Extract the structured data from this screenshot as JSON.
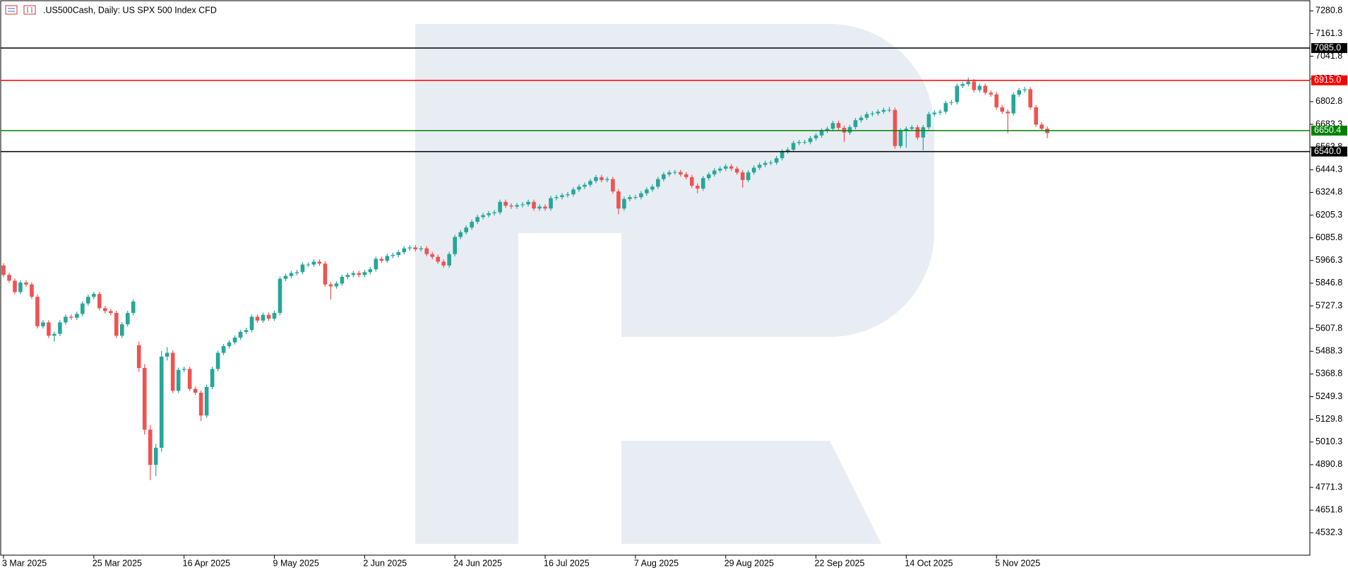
{
  "chart_data": {
    "type": "candlestick",
    "title": ".US500Cash, Daily:  US SPX 500 Index CFD",
    "categories": [
      "3 Mar 2025",
      null,
      null,
      null,
      null,
      null,
      null,
      null,
      null,
      null,
      null,
      null,
      null,
      null,
      null,
      null,
      "25 Mar 2025",
      null,
      null,
      null,
      null,
      null,
      null,
      null,
      null,
      null,
      null,
      null,
      null,
      null,
      null,
      null,
      "16 Apr 2025",
      null,
      null,
      null,
      null,
      null,
      null,
      null,
      null,
      null,
      null,
      null,
      null,
      null,
      null,
      null,
      "9 May 2025",
      null,
      null,
      null,
      null,
      null,
      null,
      null,
      null,
      null,
      null,
      null,
      null,
      null,
      null,
      null,
      "2 Jun 2025",
      null,
      null,
      null,
      null,
      null,
      null,
      null,
      null,
      null,
      null,
      null,
      null,
      null,
      null,
      null,
      "24 Jun 2025",
      null,
      null,
      null,
      null,
      null,
      null,
      null,
      null,
      null,
      null,
      null,
      null,
      null,
      null,
      null,
      "16 Jul 2025",
      null,
      null,
      null,
      null,
      null,
      null,
      null,
      null,
      null,
      null,
      null,
      null,
      null,
      null,
      null,
      "7 Aug 2025",
      null,
      null,
      null,
      null,
      null,
      null,
      null,
      null,
      null,
      null,
      null,
      null,
      null,
      null,
      null,
      "29 Aug 2025",
      null,
      null,
      null,
      null,
      null,
      null,
      null,
      null,
      null,
      null,
      null,
      null,
      null,
      null,
      null,
      "22 Sep 2025",
      null,
      null,
      null,
      null,
      null,
      null,
      null,
      null,
      null,
      null,
      null,
      null,
      null,
      null,
      null,
      "14 Oct 2025",
      null,
      null,
      null,
      null,
      null,
      null,
      null,
      null,
      null,
      null,
      null,
      null,
      null,
      null,
      null,
      "5 Nov 2025",
      null,
      null,
      null,
      null,
      null,
      null,
      null,
      null,
      null
    ],
    "open": [
      5940,
      5890,
      5860,
      5800,
      5850,
      5840,
      5775,
      5620,
      5640,
      5570,
      5580,
      5640,
      5670,
      5665,
      5685,
      5740,
      5775,
      5790,
      5715,
      5700,
      5690,
      5570,
      5630,
      5690,
      5520,
      5400,
      5075,
      4890,
      4980,
      5460,
      5480,
      5280,
      5390,
      5395,
      5290,
      5270,
      5150,
      5300,
      5395,
      5480,
      5515,
      5535,
      5560,
      5590,
      5600,
      5670,
      5650,
      5680,
      5660,
      5690,
      5870,
      5885,
      5900,
      5905,
      5945,
      5945,
      5960,
      5950,
      5840,
      5830,
      5845,
      5880,
      5890,
      5900,
      5890,
      5905,
      5920,
      5975,
      5965,
      5990,
      5995,
      6010,
      6030,
      6035,
      6025,
      6030,
      6000,
      5985,
      5960,
      5940,
      6000,
      6090,
      6115,
      6140,
      6170,
      6195,
      6205,
      6215,
      6220,
      6275,
      6255,
      6250,
      6258,
      6262,
      6275,
      6240,
      6250,
      6240,
      6295,
      6300,
      6310,
      6315,
      6340,
      6355,
      6365,
      6385,
      6405,
      6390,
      6395,
      6330,
      6240,
      6290,
      6300,
      6300,
      6320,
      6340,
      6355,
      6395,
      6420,
      6430,
      6432,
      6420,
      6405,
      6360,
      6345,
      6400,
      6420,
      6440,
      6450,
      6462,
      6450,
      6430,
      6390,
      6430,
      6455,
      6470,
      6480,
      6482,
      6505,
      6540,
      6550,
      6585,
      6590,
      6590,
      6610,
      6625,
      6650,
      6660,
      6690,
      6665,
      6640,
      6669,
      6705,
      6718,
      6737,
      6741,
      6750,
      6759,
      6759,
      6569,
      6650,
      6660,
      6668,
      6614,
      6668,
      6737,
      6745,
      6750,
      6796,
      6800,
      6886,
      6895,
      6909,
      6864,
      6886,
      6850,
      6841,
      6773,
      6750,
      6741,
      6840,
      6863,
      6868,
      6773,
      6682,
      6660
    ],
    "high": [
      5952,
      5902,
      5872,
      5862,
      5862,
      5852,
      5787,
      5652,
      5652,
      5592,
      5652,
      5682,
      5682,
      5697,
      5752,
      5787,
      5802,
      5802,
      5727,
      5712,
      5702,
      5642,
      5702,
      5762,
      5540,
      5420,
      5100,
      5000,
      5490,
      5510,
      5492,
      5402,
      5407,
      5407,
      5302,
      5282,
      5312,
      5407,
      5492,
      5527,
      5547,
      5572,
      5602,
      5612,
      5682,
      5682,
      5692,
      5692,
      5702,
      5882,
      5897,
      5912,
      5917,
      5957,
      5957,
      5972,
      5972,
      5962,
      5852,
      5857,
      5892,
      5902,
      5912,
      5912,
      5917,
      5932,
      5987,
      5987,
      6002,
      6007,
      6022,
      6042,
      6047,
      6047,
      6042,
      6042,
      6012,
      5997,
      5972,
      6012,
      6102,
      6127,
      6152,
      6182,
      6207,
      6217,
      6227,
      6232,
      6287,
      6287,
      6267,
      6270,
      6274,
      6287,
      6287,
      6262,
      6262,
      6307,
      6312,
      6322,
      6327,
      6352,
      6367,
      6377,
      6397,
      6417,
      6417,
      6407,
      6407,
      6342,
      6302,
      6312,
      6312,
      6332,
      6352,
      6367,
      6407,
      6432,
      6442,
      6444,
      6444,
      6432,
      6417,
      6372,
      6412,
      6432,
      6452,
      6462,
      6474,
      6474,
      6462,
      6442,
      6442,
      6467,
      6482,
      6492,
      6494,
      6517,
      6552,
      6562,
      6597,
      6602,
      6602,
      6622,
      6637,
      6662,
      6672,
      6702,
      6702,
      6677,
      6681,
      6717,
      6730,
      6749,
      6753,
      6762,
      6771,
      6775,
      6771,
      6662,
      6672,
      6680,
      6680,
      6680,
      6749,
      6757,
      6762,
      6808,
      6812,
      6898,
      6907,
      6930,
      6921,
      6898,
      6898,
      6862,
      6853,
      6785,
      6762,
      6852,
      6875,
      6880,
      6880,
      6785,
      6694,
      6672
    ],
    "low": [
      5878,
      5848,
      5788,
      5788,
      5828,
      5763,
      5608,
      5608,
      5558,
      5540,
      5568,
      5628,
      5653,
      5653,
      5673,
      5728,
      5763,
      5703,
      5688,
      5678,
      5558,
      5558,
      5618,
      5678,
      5380,
      5050,
      4810,
      4830,
      4960,
      5440,
      5268,
      5268,
      5378,
      5278,
      5258,
      5120,
      5138,
      5288,
      5383,
      5468,
      5503,
      5523,
      5548,
      5578,
      5588,
      5638,
      5638,
      5648,
      5648,
      5678,
      5858,
      5873,
      5888,
      5893,
      5933,
      5933,
      5938,
      5828,
      5760,
      5818,
      5833,
      5868,
      5878,
      5878,
      5878,
      5893,
      5908,
      5953,
      5953,
      5978,
      5983,
      5998,
      6018,
      6013,
      6013,
      5988,
      5973,
      5948,
      5928,
      5928,
      5988,
      6078,
      6103,
      6128,
      6158,
      6183,
      6193,
      6203,
      6208,
      6243,
      6238,
      6238,
      6246,
      6250,
      6228,
      6228,
      6228,
      6228,
      6283,
      6288,
      6298,
      6303,
      6328,
      6343,
      6353,
      6373,
      6378,
      6378,
      6318,
      6210,
      6228,
      6278,
      6288,
      6288,
      6308,
      6328,
      6343,
      6383,
      6408,
      6418,
      6408,
      6393,
      6348,
      6320,
      6333,
      6388,
      6408,
      6428,
      6438,
      6438,
      6418,
      6350,
      6378,
      6418,
      6443,
      6458,
      6468,
      6470,
      6493,
      6528,
      6538,
      6573,
      6578,
      6578,
      6598,
      6613,
      6638,
      6648,
      6653,
      6590,
      6628,
      6657,
      6693,
      6706,
      6725,
      6729,
      6738,
      6747,
      6555,
      6557,
      6560,
      6648,
      6602,
      6546,
      6656,
      6725,
      6733,
      6738,
      6784,
      6788,
      6874,
      6883,
      6852,
      6852,
      6838,
      6829,
      6761,
      6738,
      6637,
      6729,
      6828,
      6851,
      6761,
      6670,
      6648,
      6610
    ],
    "close": [
      5890,
      5860,
      5800,
      5850,
      5840,
      5775,
      5620,
      5640,
      5570,
      5580,
      5640,
      5670,
      5665,
      5685,
      5740,
      5775,
      5790,
      5715,
      5700,
      5690,
      5570,
      5630,
      5690,
      5750,
      5400,
      5075,
      4890,
      4980,
      5460,
      5480,
      5280,
      5390,
      5395,
      5290,
      5270,
      5150,
      5300,
      5395,
      5480,
      5515,
      5535,
      5560,
      5590,
      5600,
      5670,
      5650,
      5680,
      5660,
      5690,
      5870,
      5885,
      5900,
      5905,
      5945,
      5945,
      5960,
      5950,
      5840,
      5830,
      5845,
      5880,
      5890,
      5900,
      5890,
      5905,
      5920,
      5975,
      5965,
      5990,
      5995,
      6010,
      6030,
      6035,
      6025,
      6030,
      6000,
      5985,
      5960,
      5940,
      6000,
      6090,
      6115,
      6140,
      6170,
      6195,
      6205,
      6215,
      6220,
      6275,
      6255,
      6250,
      6258,
      6262,
      6275,
      6240,
      6250,
      6240,
      6295,
      6300,
      6310,
      6315,
      6340,
      6355,
      6365,
      6385,
      6405,
      6390,
      6395,
      6330,
      6240,
      6290,
      6300,
      6300,
      6320,
      6340,
      6355,
      6395,
      6420,
      6430,
      6432,
      6420,
      6405,
      6360,
      6345,
      6400,
      6420,
      6440,
      6450,
      6462,
      6450,
      6430,
      6390,
      6430,
      6455,
      6470,
      6480,
      6482,
      6505,
      6540,
      6550,
      6585,
      6590,
      6590,
      6610,
      6625,
      6650,
      6660,
      6690,
      6665,
      6640,
      6669,
      6705,
      6718,
      6737,
      6741,
      6750,
      6759,
      6759,
      6569,
      6650,
      6660,
      6668,
      6614,
      6668,
      6737,
      6745,
      6750,
      6796,
      6800,
      6886,
      6895,
      6909,
      6864,
      6886,
      6850,
      6841,
      6773,
      6750,
      6741,
      6840,
      6863,
      6868,
      6773,
      6682,
      6660,
      6637
    ],
    "up_color": "#26a69a",
    "down_color": "#ef5350",
    "ylim": [
      4414.4,
      7330.7
    ],
    "yticks": [
      7280.8,
      7161.3,
      7041.8,
      6922.3,
      6802.8,
      6683.3,
      6563.8,
      6444.3,
      6324.8,
      6205.3,
      6085.8,
      5966.3,
      5846.8,
      5727.3,
      5607.8,
      5488.3,
      5368.8,
      5249.3,
      5129.8,
      5010.3,
      4890.8,
      4771.3,
      4651.8,
      4532.3
    ],
    "levels": [
      {
        "value": 7085.0,
        "label": "7085.0",
        "color": "#000000"
      },
      {
        "value": 6915.0,
        "label": "6915.0",
        "color": "#ff0000"
      },
      {
        "value": 6650.4,
        "label": "6650.4",
        "color": "#008000"
      },
      {
        "value": 6540.0,
        "label": "6540.0",
        "color": "#000000"
      }
    ]
  }
}
